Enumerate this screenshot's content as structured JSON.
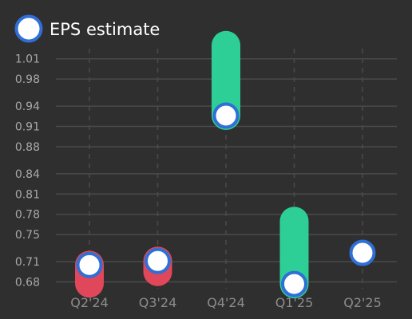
{
  "chart_data": {
    "type": "scatter",
    "legend": {
      "label": "EPS estimate",
      "position": "top-left"
    },
    "categories": [
      "Q2'24",
      "Q3'24",
      "Q4'24",
      "Q1'25",
      "Q2'25"
    ],
    "series": [
      {
        "name": "EPS estimate",
        "values": [
          0.705,
          0.711,
          0.926,
          0.677,
          0.723
        ]
      }
    ],
    "actual": [
      0.678,
      0.695,
      1.03,
      0.77,
      null
    ],
    "y_ticks": [
      "1.01",
      "0.98",
      "0.94",
      "0.91",
      "0.88",
      "0.84",
      "0.81",
      "0.78",
      "0.75",
      "0.71",
      "0.68"
    ],
    "ylim": [
      0.67,
      1.025
    ],
    "grid": true,
    "title": "",
    "xlabel": "",
    "ylabel": "",
    "colors": {
      "background": "#2f2f2f",
      "grid": "#4a4a4a",
      "marker_fill": "#ffffff",
      "marker_stroke": "#2f6fd6",
      "beat": "#2ecf97",
      "miss": "#e0475a"
    }
  }
}
